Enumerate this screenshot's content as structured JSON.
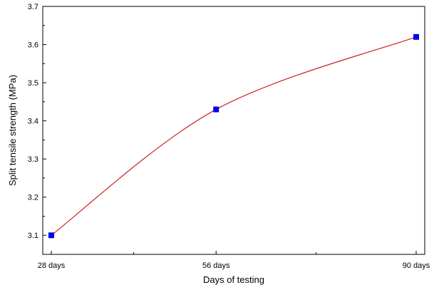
{
  "chart_data": {
    "type": "line",
    "xlabel": "Days of testing",
    "ylabel": "Split tensile strength (MPa)",
    "ylim": [
      3.05,
      3.7
    ],
    "yticks": [
      3.1,
      3.2,
      3.3,
      3.4,
      3.5,
      3.6,
      3.7
    ],
    "ytick_labels": [
      "3.1",
      "3.2",
      "3.3",
      "3.4",
      "3.5",
      "3.6",
      "3.7"
    ],
    "x": [
      28,
      56,
      90
    ],
    "xlim": [
      28,
      90
    ],
    "xtick_labels": [
      "28 days",
      "56 days",
      "90 days"
    ],
    "series": [
      {
        "values": [
          3.1,
          3.43,
          3.62
        ]
      }
    ],
    "line_color": "#cc2222",
    "marker_color": "#0000ee",
    "grid": false,
    "legend": "none"
  }
}
